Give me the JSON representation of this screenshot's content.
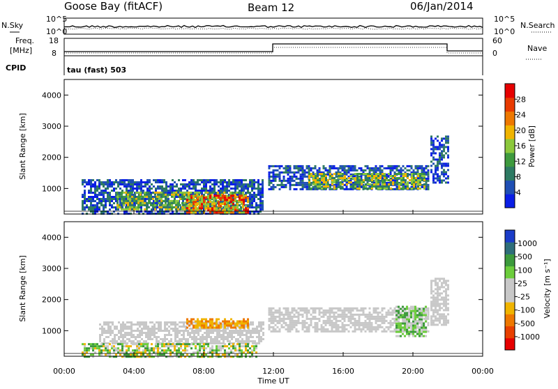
{
  "header": {
    "station": "Goose Bay (fitACF)",
    "beam": "Beam 12",
    "date": "06/Jan/2014"
  },
  "top_panel": {
    "nsky_label": "N.Sky",
    "nsearch_label": "N.Search",
    "freq_label": "Freq.",
    "freq_unit": "[MHz]",
    "nave_label": "Nave",
    "cpid_label": "CPID",
    "cpid_text": "tau (fast) 503",
    "noise_left_ticks": [
      "10^5",
      "10^0"
    ],
    "noise_right_ticks": [
      "10^5",
      "10^0"
    ],
    "freq_ticks": [
      "18",
      "8"
    ],
    "nave_ticks": [
      "60",
      "0"
    ]
  },
  "chart_data": [
    {
      "type": "heatmap",
      "panel": "power",
      "ylabel": "Slant Range [km]",
      "y_ticks": [
        "1000",
        "2000",
        "3000",
        "4000"
      ],
      "ylim": [
        180,
        4500
      ],
      "xlim": [
        0,
        24
      ],
      "colorbar": {
        "label": "Power [dB]",
        "ticks": [
          "4",
          "8",
          "12",
          "16",
          "20",
          "24",
          "28"
        ],
        "colors": [
          "#0a1ee6",
          "#1f4fb4",
          "#2e7a63",
          "#3e9a3e",
          "#8cc83c",
          "#f0b400",
          "#ee7800",
          "#e83a00",
          "#e60000"
        ]
      },
      "regions": [
        {
          "t0": 1.0,
          "t1": 11.4,
          "r0": 180,
          "r1": 1300,
          "level": "low"
        },
        {
          "t0": 3.0,
          "t1": 10.3,
          "r0": 300,
          "r1": 900,
          "level": "medium"
        },
        {
          "t0": 7.0,
          "t1": 10.5,
          "r0": 250,
          "r1": 800,
          "level": "high"
        },
        {
          "t0": 11.7,
          "t1": 20.9,
          "r0": 1000,
          "r1": 1750,
          "level": "low"
        },
        {
          "t0": 14.0,
          "t1": 20.7,
          "r0": 1000,
          "r1": 1500,
          "level": "medium"
        },
        {
          "t0": 21.0,
          "t1": 22.0,
          "r0": 1200,
          "r1": 2700,
          "level": "low"
        }
      ]
    },
    {
      "type": "heatmap",
      "panel": "velocity",
      "ylabel": "Slant Range [km]",
      "y_ticks": [
        "1000",
        "2000",
        "3000",
        "4000"
      ],
      "ylim": [
        180,
        4500
      ],
      "xlim": [
        0,
        24
      ],
      "colorbar": {
        "label": "Velocity [m s⁻¹]",
        "ticks": [
          "1000",
          "500",
          "100",
          "25",
          "-25",
          "-100",
          "-500",
          "-1000"
        ],
        "colors": [
          "#1a3cc8",
          "#2e6e7a",
          "#3c9a3c",
          "#6ccd3c",
          "#c8c8c8",
          "#c8c8c8",
          "#f0b400",
          "#ee7800",
          "#e84000",
          "#e60000"
        ]
      },
      "regions": [
        {
          "t0": 2.0,
          "t1": 11.4,
          "r0": 600,
          "r1": 1300,
          "level": "ground"
        },
        {
          "t0": 1.0,
          "t1": 11.0,
          "r0": 180,
          "r1": 600,
          "level": "mixed"
        },
        {
          "t0": 7.0,
          "t1": 10.5,
          "r0": 1100,
          "r1": 1400,
          "level": "negative"
        },
        {
          "t0": 11.7,
          "t1": 20.9,
          "r0": 1000,
          "r1": 1750,
          "level": "ground"
        },
        {
          "t0": 19.0,
          "t1": 20.8,
          "r0": 800,
          "r1": 1800,
          "level": "positive"
        },
        {
          "t0": 21.0,
          "t1": 22.0,
          "r0": 1200,
          "r1": 2700,
          "level": "ground"
        }
      ]
    }
  ],
  "x_axis": {
    "label": "Time UT",
    "ticks": [
      "00:00",
      "04:00",
      "08:00",
      "12:00",
      "16:00",
      "20:00",
      "00:00"
    ]
  }
}
